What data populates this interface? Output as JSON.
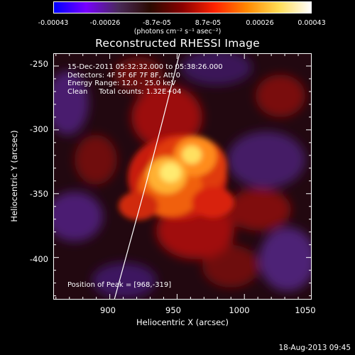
{
  "colorbar": {
    "ticks": [
      "-0.00043",
      "-0.00026",
      "-8.7e-05",
      "8.7e-05",
      "0.00026",
      "0.00043"
    ],
    "units": "(photons cm⁻² s⁻¹ asec⁻²)",
    "colors": [
      "#0000ff",
      "#7700ff",
      "#4a2a5a",
      "#2a0a00",
      "#8a0000",
      "#ff2200",
      "#ff8800",
      "#ffdd55",
      "#ffffff"
    ]
  },
  "title": "Reconstructed RHESSI Image",
  "info": {
    "time_range": "15-Dec-2011 05:32:32.000 to 05:38:26.000",
    "detectors": "Detectors: 4F 5F 6F 7F 8F, Att 0",
    "energy": "Energy Range: 12.0 - 25.0 keV",
    "clean": "Clean     Total counts: 1.32E+04"
  },
  "peak": "Position of Peak = [968,-319]",
  "axes": {
    "xlabel": "Heliocentric X (arcsec)",
    "ylabel": "Heliocentric Y (arcsec)",
    "xticks": [
      "900",
      "950",
      "1000",
      "1050"
    ],
    "yticks": [
      "-250",
      "-300",
      "-350",
      "-400"
    ],
    "xlim": [
      858,
      1050
    ],
    "ylim": [
      -433,
      -240
    ]
  },
  "timestamp": "18-Aug-2013 09:45"
}
